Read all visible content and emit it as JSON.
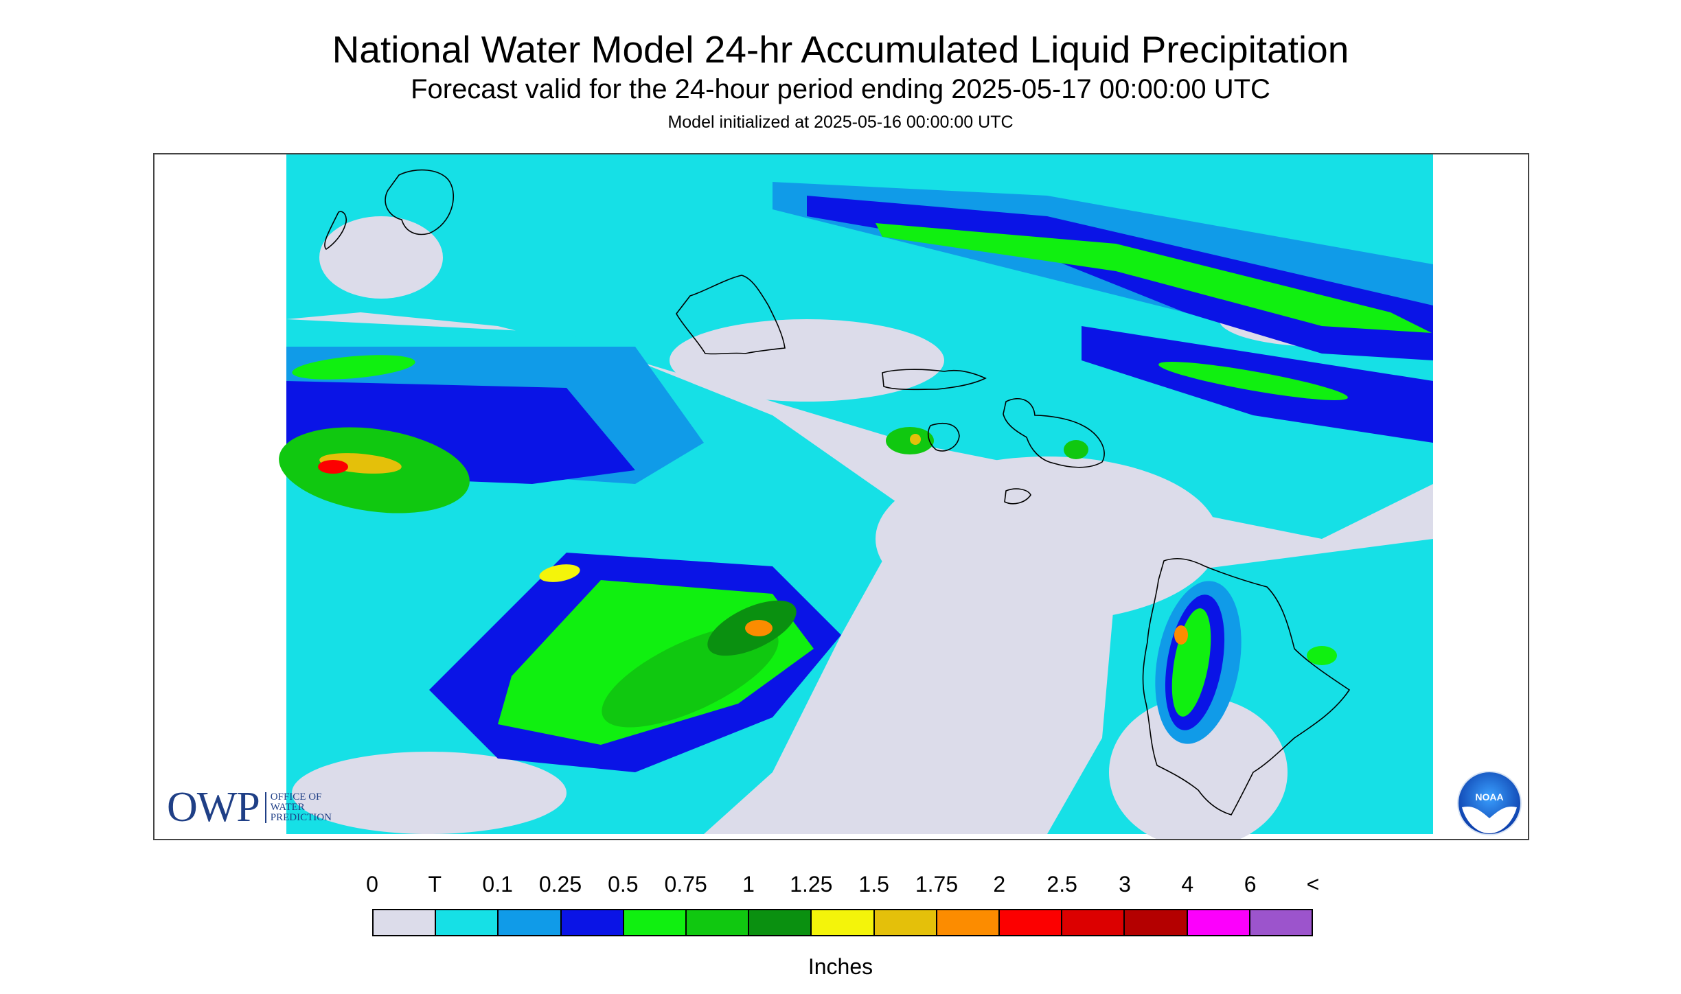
{
  "header": {
    "title": "National Water Model 24-hr Accumulated Liquid Precipitation",
    "subtitle": "Forecast valid for the 24-hour period ending 2025-05-17 00:00:00 UTC",
    "init_line": "Model initialized at 2025-05-16 00:00:00 UTC"
  },
  "map": {
    "region": "Hawaiian Islands",
    "icons": [
      "owp-logo",
      "noaa-logo"
    ],
    "owp_logo": {
      "acronym": "OWP",
      "line1": "OFFICE OF",
      "line2": "WATER",
      "line3": "PREDICTION"
    },
    "noaa_logo_text": "NOAA"
  },
  "legend": {
    "labels": [
      "0",
      "T",
      "0.1",
      "0.25",
      "0.5",
      "0.75",
      "1",
      "1.25",
      "1.5",
      "1.75",
      "2",
      "2.5",
      "3",
      "4",
      "6",
      "<"
    ],
    "colors": [
      "#dcdcea",
      "#16e0e6",
      "#109be8",
      "#0a14e6",
      "#10f010",
      "#10c810",
      "#0a9010",
      "#f4f40a",
      "#e4c00a",
      "#fc8c00",
      "#fc0000",
      "#dc0000",
      "#b40000",
      "#fc00fc",
      "#9c54cc"
    ],
    "units": "Inches"
  }
}
